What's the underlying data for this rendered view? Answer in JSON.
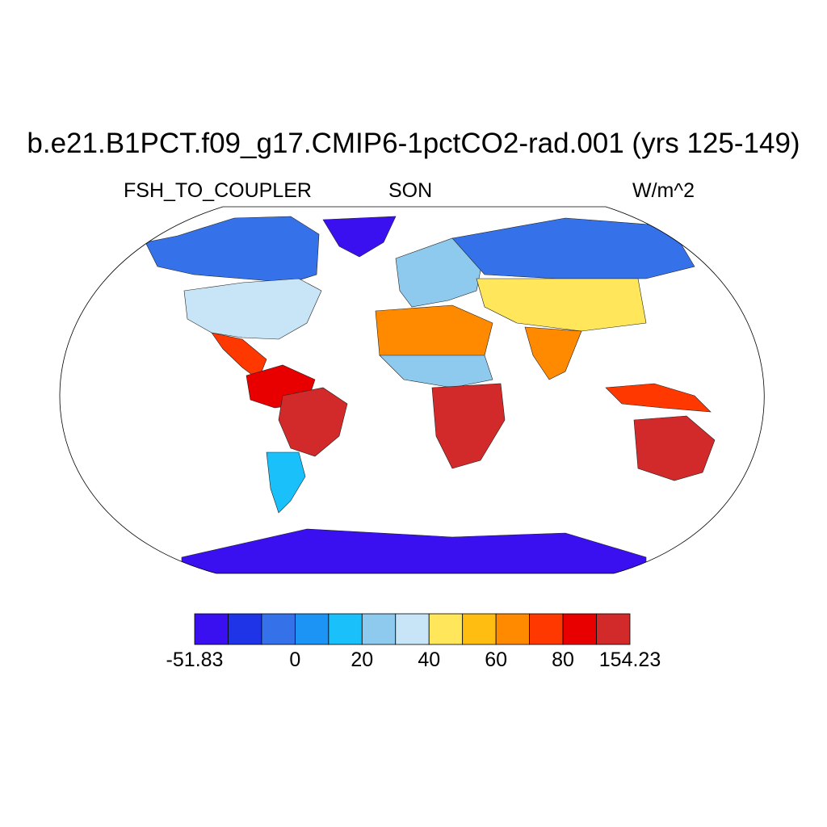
{
  "title": "b.e21.B1PCT.f09_g17.CMIP6-1pctCO2-rad.001 (yrs 125-149)",
  "variable": "FSH_TO_COUPLER",
  "season": "SON",
  "units": "W/m^2",
  "colorbar": {
    "colors": [
      "#3a10f0",
      "#1e34e6",
      "#3571e8",
      "#1c94f5",
      "#19c0fa",
      "#8ec9ee",
      "#c8e5f7",
      "#ffe65a",
      "#ffbd12",
      "#ff8a00",
      "#ff3800",
      "#e80000",
      "#d22a2a"
    ],
    "labels": [
      "-51.83",
      "0",
      "20",
      "40",
      "60",
      "80",
      "154.23"
    ]
  },
  "map": {
    "projection": "Robinson",
    "ocean_color": "#ffffff",
    "regions": [
      {
        "name": "Greenland",
        "level": 0
      },
      {
        "name": "Antarctica",
        "level": 0
      },
      {
        "name": "Canada",
        "level": 2
      },
      {
        "name": "United States",
        "level": 6
      },
      {
        "name": "Central America",
        "level": 10
      },
      {
        "name": "Amazon",
        "level": 11
      },
      {
        "name": "Brazil",
        "level": 12
      },
      {
        "name": "Patagonia",
        "level": 4
      },
      {
        "name": "Sahara",
        "level": 9
      },
      {
        "name": "Sahel",
        "level": 5
      },
      {
        "name": "Southern Africa",
        "level": 12
      },
      {
        "name": "Europe",
        "level": 5
      },
      {
        "name": "Siberia",
        "level": 2
      },
      {
        "name": "Central Asia",
        "level": 7
      },
      {
        "name": "India",
        "level": 9
      },
      {
        "name": "Australia",
        "level": 12
      },
      {
        "name": "Indonesia",
        "level": 10
      }
    ]
  }
}
